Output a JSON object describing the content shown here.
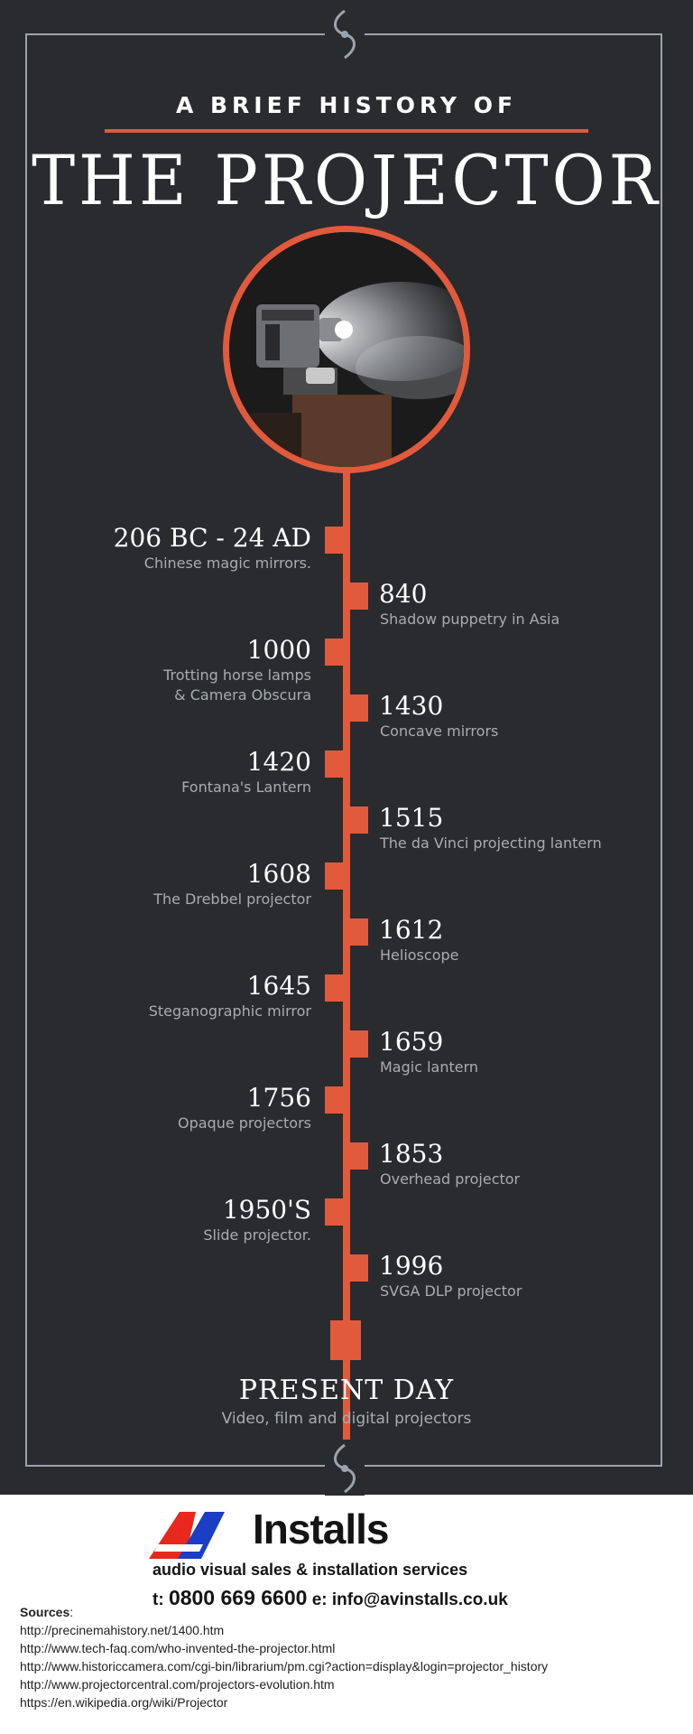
{
  "header": {
    "subtitle": "A BRIEF HISTORY OF",
    "title": "THE PROJECTOR"
  },
  "timeline": [
    {
      "year": "206 BC - 24 AD",
      "desc": "Chinese magic mirrors.",
      "side": "left"
    },
    {
      "year": "840",
      "desc": "Shadow puppetry in Asia",
      "side": "right"
    },
    {
      "year": "1000",
      "desc": "Trotting horse lamps\n& Camera Obscura",
      "side": "left"
    },
    {
      "year": "1430",
      "desc": "Concave mirrors",
      "side": "right"
    },
    {
      "year": "1420",
      "desc": "Fontana's Lantern",
      "side": "left"
    },
    {
      "year": "1515",
      "desc": "The da Vinci projecting lantern",
      "side": "right"
    },
    {
      "year": "1608",
      "desc": "The Drebbel projector",
      "side": "left"
    },
    {
      "year": "1612",
      "desc": "Helioscope",
      "side": "right"
    },
    {
      "year": "1645",
      "desc": "Steganographic mirror",
      "side": "left"
    },
    {
      "year": "1659",
      "desc": "Magic lantern",
      "side": "right"
    },
    {
      "year": "1756",
      "desc": "Opaque projectors",
      "side": "left"
    },
    {
      "year": "1853",
      "desc": "Overhead projector",
      "side": "right"
    },
    {
      "year": "1950'S",
      "desc": "Slide projector.",
      "side": "left"
    },
    {
      "year": "1996",
      "desc": "SVGA DLP projector",
      "side": "right"
    }
  ],
  "present": {
    "title": "PRESENT DAY",
    "desc": "Video, film and digital projectors"
  },
  "brand": {
    "logo_initials": "AV",
    "logo_word": "Installs",
    "tagline": "audio visual sales & installation services",
    "phone_label": "t:",
    "phone": "0800 669 6600",
    "email_label": "e:",
    "email": "info@avinstalls.co.uk"
  },
  "sources": {
    "heading": "Sources",
    "links": [
      "http://precinemahistory.net/1400.htm",
      "http://www.tech-faq.com/who-invented-the-projector.html",
      "http://www.historiccamera.com/cgi-bin/librarium/pm.cgi?action=display&login=projector_history",
      "http://www.projectorcentral.com/projectors-evolution.htm",
      "https://en.wikipedia.org/wiki/Projector"
    ]
  },
  "colors": {
    "background": "#2a2b2f",
    "accent": "#e15a3c",
    "frame": "#9ba3ad",
    "muted_text": "#a7acb3"
  }
}
